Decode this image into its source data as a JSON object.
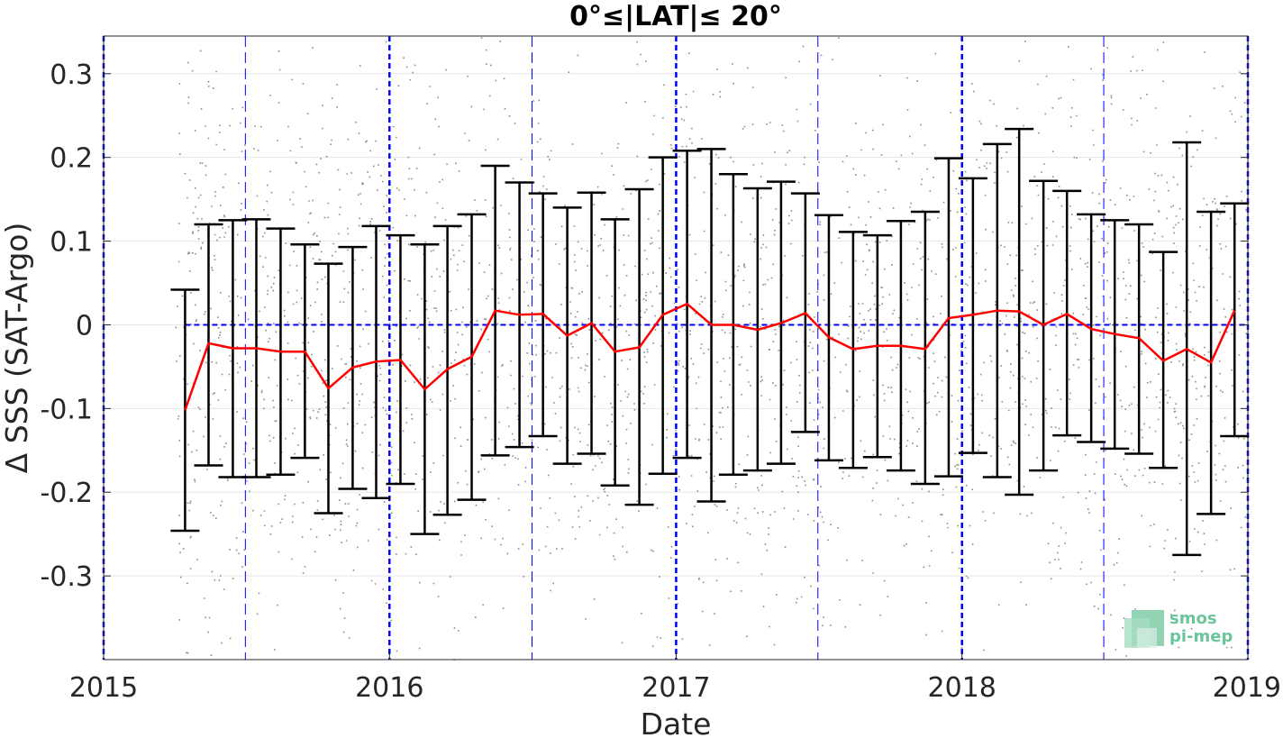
{
  "chart_data": {
    "type": "scatter",
    "title": "0°≤|LAT|≤ 20°",
    "xlabel": "Date",
    "ylabel": "Δ SSS (SAT-Argo)",
    "xlim": [
      "2015-01-01",
      "2019-01-01"
    ],
    "ylim": [
      -0.4,
      0.345
    ],
    "x_ticks": [
      "2015",
      "2016",
      "2017",
      "2018",
      "2019"
    ],
    "y_ticks": [
      "0.3",
      "0.2",
      "0.1",
      "0",
      "-0.1",
      "-0.2",
      "-0.3"
    ],
    "y_tick_values": [
      0.3,
      0.2,
      0.1,
      0,
      -0.1,
      -0.2,
      -0.3
    ],
    "grid": true,
    "scatter_points": {
      "description_color": "#808080",
      "x_range": [
        "2015-04-01",
        "2019-01-01"
      ],
      "y_range": [
        -0.4,
        0.345
      ]
    },
    "monthly_series": {
      "dates": [
        "2015-04-15",
        "2015-05-15",
        "2015-06-15",
        "2015-07-15",
        "2015-08-15",
        "2015-09-15",
        "2015-10-15",
        "2015-11-15",
        "2015-12-15",
        "2016-01-15",
        "2016-02-15",
        "2016-03-15",
        "2016-04-15",
        "2016-05-15",
        "2016-06-15",
        "2016-07-15",
        "2016-08-15",
        "2016-09-15",
        "2016-10-15",
        "2016-11-15",
        "2016-12-15",
        "2017-01-15",
        "2017-02-15",
        "2017-03-15",
        "2017-04-15",
        "2017-05-15",
        "2017-06-15",
        "2017-07-15",
        "2017-08-15",
        "2017-09-15",
        "2017-10-15",
        "2017-11-15",
        "2017-12-15",
        "2018-01-15",
        "2018-02-15",
        "2018-03-15",
        "2018-04-15",
        "2018-05-15",
        "2018-06-15",
        "2018-07-15",
        "2018-08-15",
        "2018-09-15",
        "2018-10-15",
        "2018-11-15",
        "2018-12-15"
      ],
      "mean": [
        -0.102,
        -0.022,
        -0.028,
        -0.028,
        -0.032,
        -0.032,
        -0.076,
        -0.051,
        -0.044,
        -0.042,
        -0.077,
        -0.053,
        -0.038,
        0.017,
        0.012,
        0.013,
        -0.013,
        0.002,
        -0.032,
        -0.027,
        0.012,
        0.025,
        0.0,
        0.0,
        -0.006,
        0.002,
        0.014,
        -0.015,
        -0.029,
        -0.025,
        -0.025,
        -0.029,
        0.008,
        0.012,
        0.017,
        0.016,
        0.0,
        0.013,
        -0.005,
        -0.011,
        -0.016,
        -0.043,
        -0.029,
        -0.045,
        0.017
      ],
      "upper": [
        0.042,
        0.12,
        0.125,
        0.126,
        0.115,
        0.096,
        0.073,
        0.093,
        0.118,
        0.107,
        0.096,
        0.118,
        0.132,
        0.19,
        0.17,
        0.157,
        0.14,
        0.158,
        0.126,
        0.162,
        0.2,
        0.208,
        0.21,
        0.18,
        0.163,
        0.171,
        0.157,
        0.131,
        0.111,
        0.107,
        0.124,
        0.135,
        0.199,
        0.175,
        0.216,
        0.234,
        0.172,
        0.16,
        0.132,
        0.125,
        0.12,
        0.087,
        0.218,
        0.135,
        0.145
      ],
      "lower": [
        -0.246,
        -0.168,
        -0.182,
        -0.182,
        -0.179,
        -0.159,
        -0.225,
        -0.196,
        -0.207,
        -0.19,
        -0.25,
        -0.227,
        -0.209,
        -0.156,
        -0.146,
        -0.133,
        -0.166,
        -0.154,
        -0.192,
        -0.215,
        -0.178,
        -0.159,
        -0.211,
        -0.179,
        -0.174,
        -0.166,
        -0.128,
        -0.162,
        -0.171,
        -0.158,
        -0.174,
        -0.19,
        -0.181,
        -0.153,
        -0.182,
        -0.203,
        -0.174,
        -0.132,
        -0.14,
        -0.148,
        -0.154,
        -0.171,
        -0.275,
        -0.226,
        -0.133
      ]
    },
    "reference_lines": {
      "zero_line_from": "2015-04-15",
      "year_lines": [
        "2015-01-01",
        "2016-01-01",
        "2017-01-01",
        "2018-01-01",
        "2019-01-01"
      ],
      "half_year_lines": [
        "2015-07-01",
        "2016-07-01",
        "2017-07-01",
        "2018-07-01"
      ]
    },
    "colors": {
      "scatter": "#8c8c8c",
      "mean_line": "#ff0000",
      "error_bars": "#000000",
      "reference_lines": "#0000ff",
      "grid": "#e6e6e6",
      "logo": "#6cc49a"
    }
  },
  "logo": {
    "line1": "smos",
    "line2": "pi-mep"
  }
}
